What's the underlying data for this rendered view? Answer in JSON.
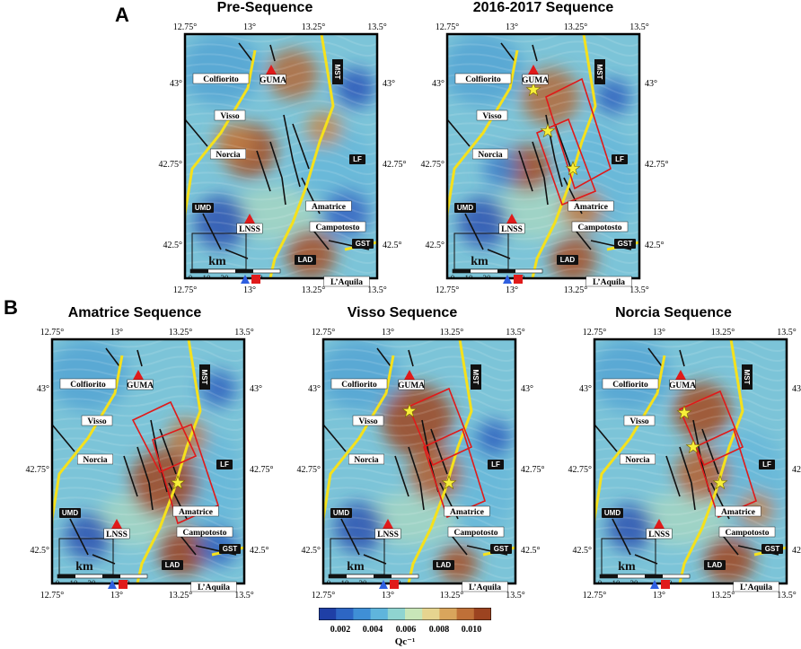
{
  "panel_labels": {
    "a": "A",
    "b": "B"
  },
  "titles": {
    "pre": "Pre-Sequence",
    "seq2016": "2016-2017 Sequence",
    "amatrice": "Amatrice Sequence",
    "visso": "Visso Sequence",
    "norcia": "Norcia Sequence"
  },
  "lon_ticks": [
    "12.75°",
    "13°",
    "13.25°",
    "13.5°"
  ],
  "lat_ticks": [
    "43°",
    "42.75°",
    "42.5°"
  ],
  "map_labels": {
    "colfiorito": "Colfiorito",
    "guma": "GUMA",
    "visso": "Visso",
    "norcia": "Norcia",
    "amatrice": "Amatrice",
    "lnss": "LNSS",
    "umd": "UMD",
    "campotosto": "Campotosto",
    "laquila": "L’Aquila",
    "mst": "MST",
    "lf": "LF",
    "gst": "GST",
    "lad": "LAD"
  },
  "scale_bar": {
    "unit": "km",
    "ticks": [
      "0",
      "10",
      "20",
      "40"
    ]
  },
  "colorbar": {
    "ticks": [
      "0.002",
      "0.004",
      "0.006",
      "0.008",
      "0.010"
    ],
    "label": "Qc⁻¹",
    "colors": [
      "#1f3fa6",
      "#2d66c4",
      "#3f8fd6",
      "#5fb5dc",
      "#8fd4d0",
      "#c8e6b8",
      "#e6d48f",
      "#d9a55c",
      "#bf7038",
      "#9c4320"
    ]
  },
  "colors": {
    "fault_line": "#f5e11c",
    "box": "#e01a1a",
    "station": "#e01a1a",
    "star": "#f7ef3a"
  }
}
